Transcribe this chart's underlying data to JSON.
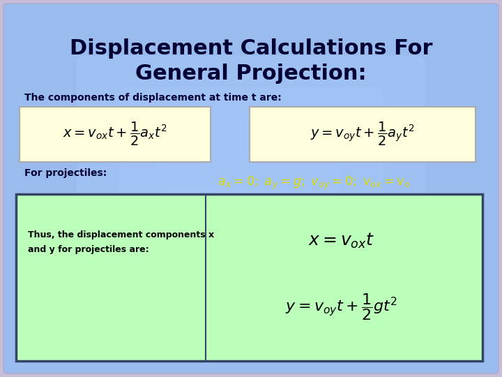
{
  "title_line1": "Displacement Calculations For",
  "title_line2": "General Projection:",
  "subtitle": "The components of displacement at time t are:",
  "eq1": "$x = v_{ox}t + \\dfrac{1}{2}a_x t^2$",
  "eq2": "$y = v_{oy}t + \\dfrac{1}{2}a_y t^2$",
  "projectile_label": "For projectiles:",
  "projectile_eq": "$a_x = 0;\\; a_y = g;\\; v_{oy} = 0;\\; v_{ox} = v_o$",
  "box_label": "Thus, the displacement components x\nand y for projectiles are:",
  "result_eq1": "$x = v_{ox}t$",
  "result_eq2": "$y = v_{oy}t + \\dfrac{1}{2}g t^2$",
  "bg_outer": "#c8bcd8",
  "bg_inner": "#88aadd",
  "bg_center": "#aaccff",
  "eq_box_color": "#ffffdd",
  "result_box_color": "#bbffbb",
  "title_color": "#000033",
  "subtitle_color": "#000033",
  "projectile_eq_color": "#dddd00",
  "result_eq_color": "#000000",
  "box_border_color": "#334466"
}
